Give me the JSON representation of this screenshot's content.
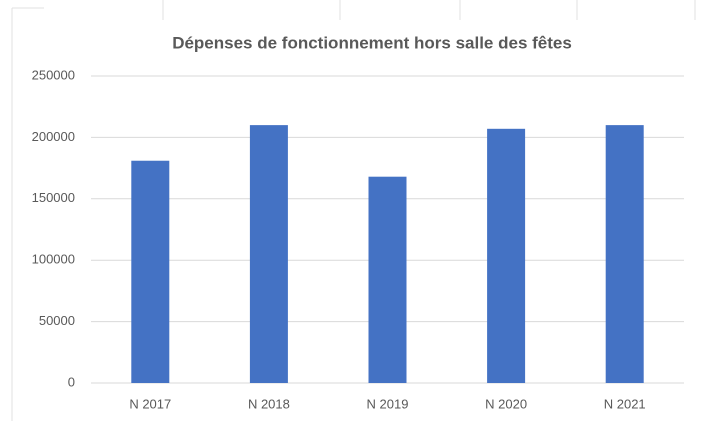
{
  "chart_data": {
    "type": "bar",
    "title": "Dépenses de fonctionnement hors salle des fêtes",
    "categories": [
      "N 2017",
      "N 2018",
      "N 2019",
      "N 2020",
      "N 2021"
    ],
    "values": [
      181000,
      210000,
      168000,
      207000,
      210000
    ],
    "color": "#4472c4",
    "ylim": [
      0,
      250000
    ],
    "yticks": [
      0,
      50000,
      100000,
      150000,
      200000,
      250000
    ],
    "grid": true
  }
}
